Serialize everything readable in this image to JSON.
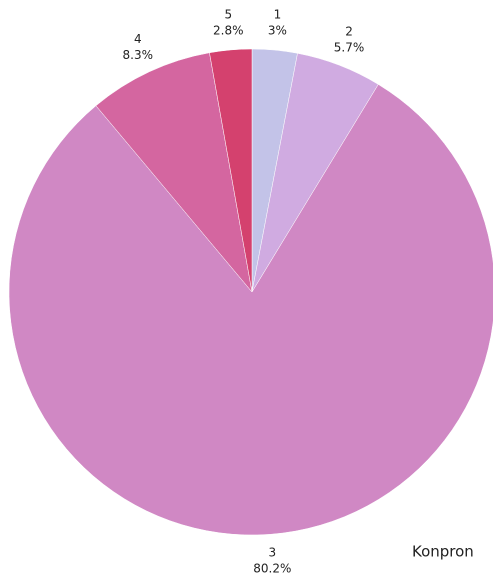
{
  "chart_data": {
    "type": "pie",
    "categories": [
      "1",
      "2",
      "3",
      "4",
      "5"
    ],
    "values": [
      3,
      5.7,
      80.2,
      8.3,
      2.8
    ],
    "value_labels": [
      "3%",
      "5.7%",
      "80.2%",
      "8.3%",
      "2.8%"
    ],
    "colors": [
      "#c3c3e8",
      "#d0abe1",
      "#d088c4",
      "#d466a0",
      "#d4416e"
    ],
    "annotation": "Konpron"
  }
}
